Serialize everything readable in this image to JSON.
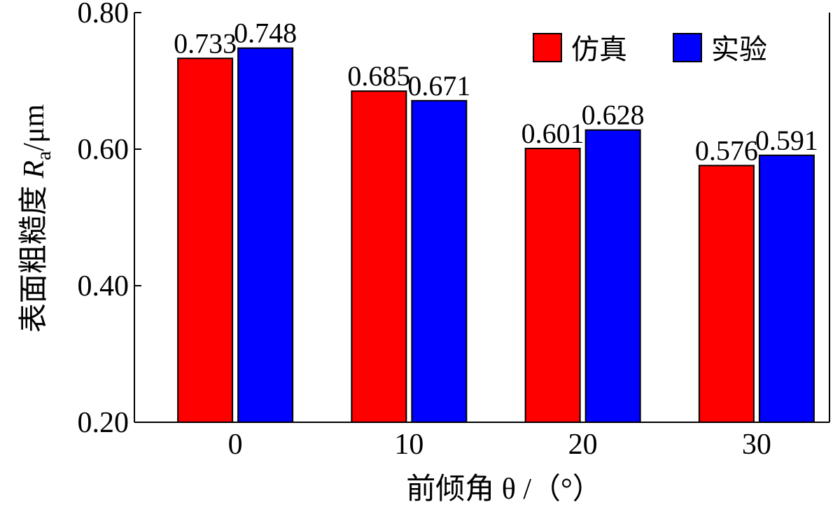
{
  "chart_data": {
    "type": "bar",
    "categories": [
      "0",
      "10",
      "20",
      "30"
    ],
    "series": [
      {
        "name": "仿真",
        "values": [
          0.733,
          0.685,
          0.601,
          0.576
        ],
        "color": "#ff0000"
      },
      {
        "name": "实验",
        "values": [
          0.748,
          0.671,
          0.628,
          0.591
        ],
        "color": "#0000ff"
      }
    ],
    "data_labels": [
      [
        "0.733",
        "0.685",
        "0.601",
        "0.576"
      ],
      [
        "0.748",
        "0.671",
        "0.628",
        "0.591"
      ]
    ],
    "ylim": [
      0.2,
      0.8
    ],
    "yticks": [
      "0.20",
      "0.40",
      "0.60",
      "0.80"
    ],
    "xlabel_text": "前倾角 θ /（°）",
    "ylabel_main": "表面粗糙度 ",
    "ylabel_symbol": "R",
    "ylabel_sub": "a",
    "ylabel_unit": "/μm",
    "grid": false,
    "legend_position": "top-right"
  }
}
